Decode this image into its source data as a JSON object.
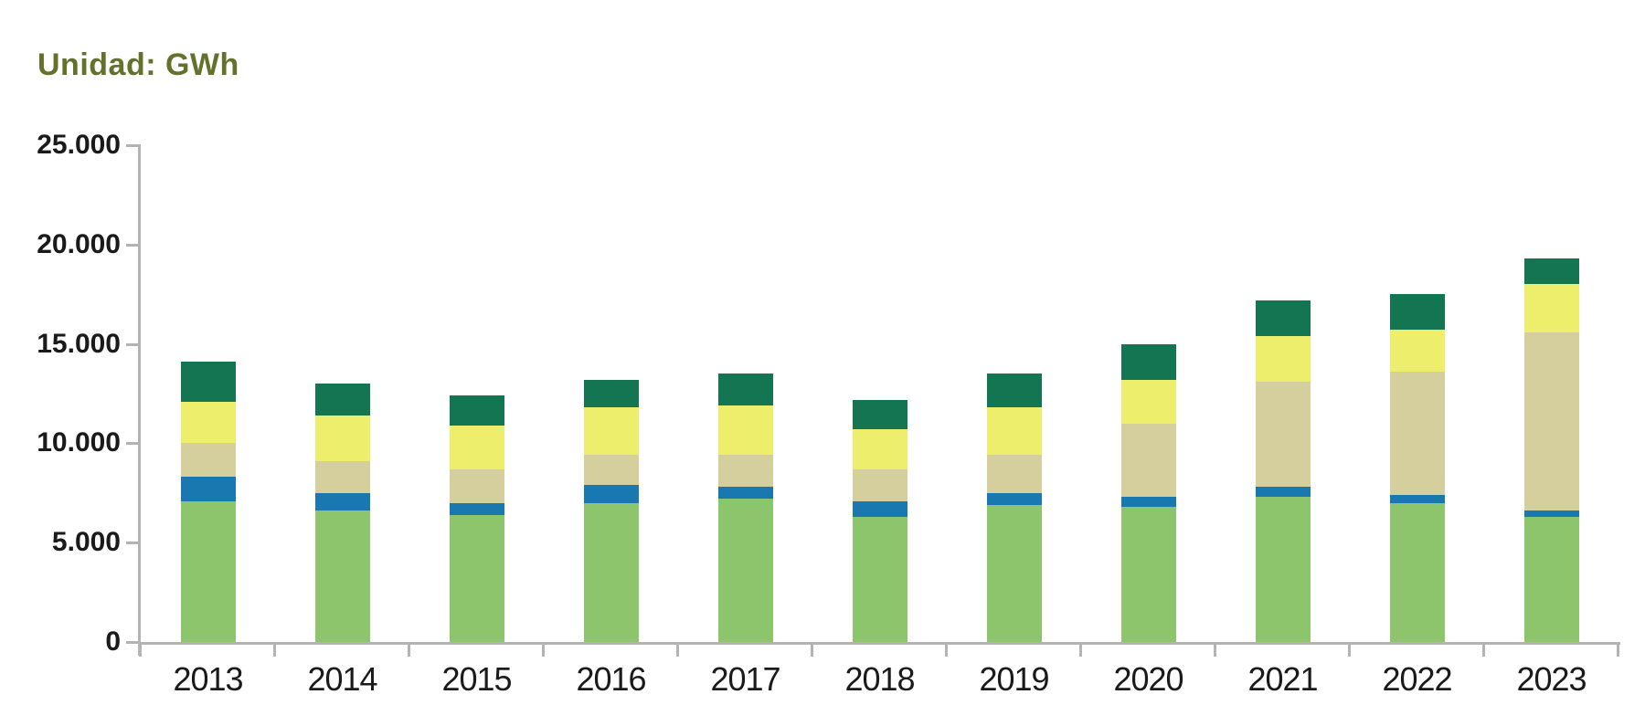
{
  "title": {
    "text": "Unidad: GWh",
    "color": "#63712C"
  },
  "chart_data": {
    "type": "bar",
    "stacked": true,
    "unit": "GWh",
    "title": "Unidad: GWh",
    "legend": "none",
    "grid": "off",
    "axis_color": "#B3B3B3",
    "label_color": "#1A1A1A",
    "categories": [
      "2013",
      "2014",
      "2015",
      "2016",
      "2017",
      "2018",
      "2019",
      "2020",
      "2021",
      "2022",
      "2023"
    ],
    "series": [
      {
        "name": "light-green",
        "color": "#8CC56B",
        "values": [
          7100,
          6600,
          6400,
          7000,
          7200,
          6300,
          6900,
          6800,
          7300,
          7000,
          6300
        ]
      },
      {
        "name": "blue",
        "color": "#1A78B0",
        "values": [
          1200,
          900,
          600,
          900,
          600,
          800,
          600,
          500,
          500,
          400,
          300
        ]
      },
      {
        "name": "tan",
        "color": "#D5CF9E",
        "values": [
          1700,
          1600,
          1700,
          1500,
          1600,
          1600,
          1900,
          3700,
          5300,
          6200,
          9000
        ]
      },
      {
        "name": "yellow",
        "color": "#EDEE6B",
        "values": [
          2100,
          2300,
          2200,
          2400,
          2500,
          2000,
          2400,
          2200,
          2300,
          2100,
          2400
        ]
      },
      {
        "name": "dark-green",
        "color": "#137552",
        "values": [
          2000,
          1600,
          1500,
          1400,
          1600,
          1500,
          1700,
          1800,
          1800,
          1800,
          1300
        ]
      }
    ],
    "totals": [
      14100,
      13000,
      12400,
      13200,
      13500,
      12200,
      13500,
      15000,
      17200,
      17500,
      19300
    ],
    "y_axis": {
      "min": 0,
      "max": 25000,
      "ticks": [
        {
          "label": "25.000",
          "value": 25000
        },
        {
          "label": "20.000",
          "value": 20000
        },
        {
          "label": "15.000",
          "value": 15000
        },
        {
          "label": "10.000",
          "value": 10000
        },
        {
          "label": "5.000",
          "value": 5000
        },
        {
          "label": "0",
          "value": 0
        }
      ]
    },
    "x_axis": {
      "boundary_tick_count": 12
    }
  }
}
